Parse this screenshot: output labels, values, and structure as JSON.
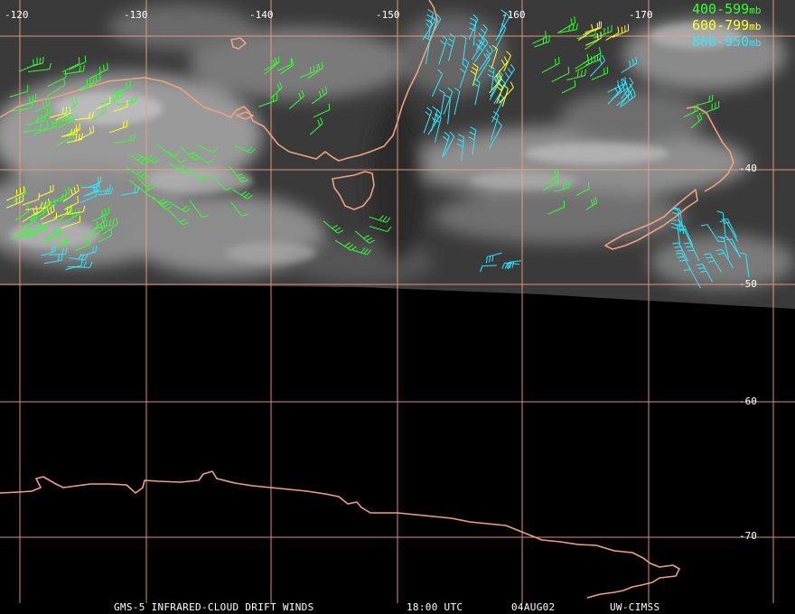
{
  "map": {
    "longitude_labels": [
      "-120",
      "-130",
      "-140",
      "-150",
      "-160",
      "-170"
    ],
    "latitude_labels": [
      "-40",
      "-50",
      "-60",
      "-70"
    ],
    "colors": {
      "grid": "#f0a080",
      "coastline": "#f0a080",
      "level_400_599": "#33ff33",
      "level_600_799": "#ffff33",
      "level_800_950": "#33e6ff",
      "background": "#000000"
    }
  },
  "legend": {
    "items": [
      {
        "range": "400-599",
        "unit": "mb",
        "color": "#33ff33"
      },
      {
        "range": "600-799",
        "unit": "mb",
        "color": "#ffff33"
      },
      {
        "range": "800-950",
        "unit": "mb",
        "color": "#33e6ff"
      }
    ]
  },
  "footer": {
    "product": "GMS-5 INFRARED-CLOUD DRIFT WINDS",
    "time": "18:00 UTC",
    "date": "04AUG02",
    "credit": "UW-CIMSS"
  }
}
